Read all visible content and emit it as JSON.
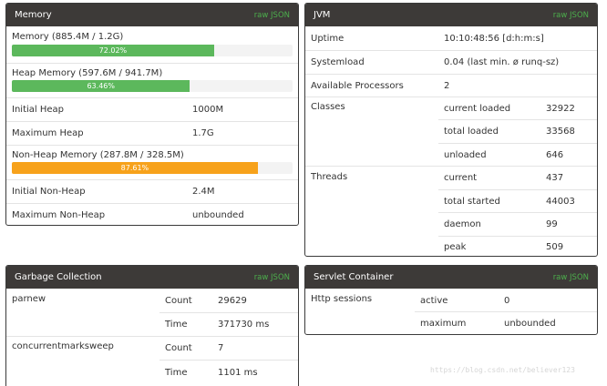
{
  "memory": {
    "title": "Memory",
    "raw": "raw JSON",
    "mem_label": "Memory (885.4M / 1.2G)",
    "mem_pct_text": "72.02%",
    "mem_fraction": 0.7202,
    "heap_label": "Heap Memory (597.6M / 941.7M)",
    "heap_pct_text": "63.46%",
    "heap_fraction": 0.6346,
    "nonheap_label": "Non-Heap Memory (287.8M / 328.5M)",
    "nonheap_pct_text": "87.61%",
    "nonheap_fraction": 0.8761,
    "rows": [
      {
        "label": "Initial Heap",
        "value": "1000M"
      },
      {
        "label": "Maximum Heap",
        "value": "1.7G"
      },
      {
        "label": "Initial Non-Heap",
        "value": "2.4M"
      },
      {
        "label": "Maximum Non-Heap",
        "value": "unbounded"
      }
    ],
    "colors": {
      "green": "#5cb85c",
      "orange": "#f7a21b"
    }
  },
  "jvm": {
    "title": "JVM",
    "raw": "raw JSON",
    "uptime_label": "Uptime",
    "uptime_value": "10:10:48:56 [d:h:m:s]",
    "load_label": "Systemload",
    "load_value": "0.04 (last min. ø runq-sz)",
    "proc_label": "Available Processors",
    "proc_value": "2",
    "classes_label": "Classes",
    "classes": [
      {
        "label": "current loaded",
        "value": "32922"
      },
      {
        "label": "total loaded",
        "value": "33568"
      },
      {
        "label": "unloaded",
        "value": "646"
      }
    ],
    "threads_label": "Threads",
    "threads": [
      {
        "label": "current",
        "value": "437"
      },
      {
        "label": "total started",
        "value": "44003"
      },
      {
        "label": "daemon",
        "value": "99"
      },
      {
        "label": "peak",
        "value": "509"
      }
    ]
  },
  "gc": {
    "title": "Garbage Collection",
    "raw": "raw JSON",
    "collectors": [
      {
        "name": "parnew",
        "count_label": "Count",
        "count": "29629",
        "time_label": "Time",
        "time": "371730 ms"
      },
      {
        "name": "concurrentmarksweep",
        "count_label": "Count",
        "count": "7",
        "time_label": "Time",
        "time": "1101 ms"
      }
    ]
  },
  "servlet": {
    "title": "Servlet Container",
    "raw": "raw JSON",
    "sessions_label": "Http sessions",
    "active_label": "active",
    "active_value": "0",
    "max_label": "maximum",
    "max_value": "unbounded"
  },
  "watermark": "https://blog.csdn.net/believer123"
}
